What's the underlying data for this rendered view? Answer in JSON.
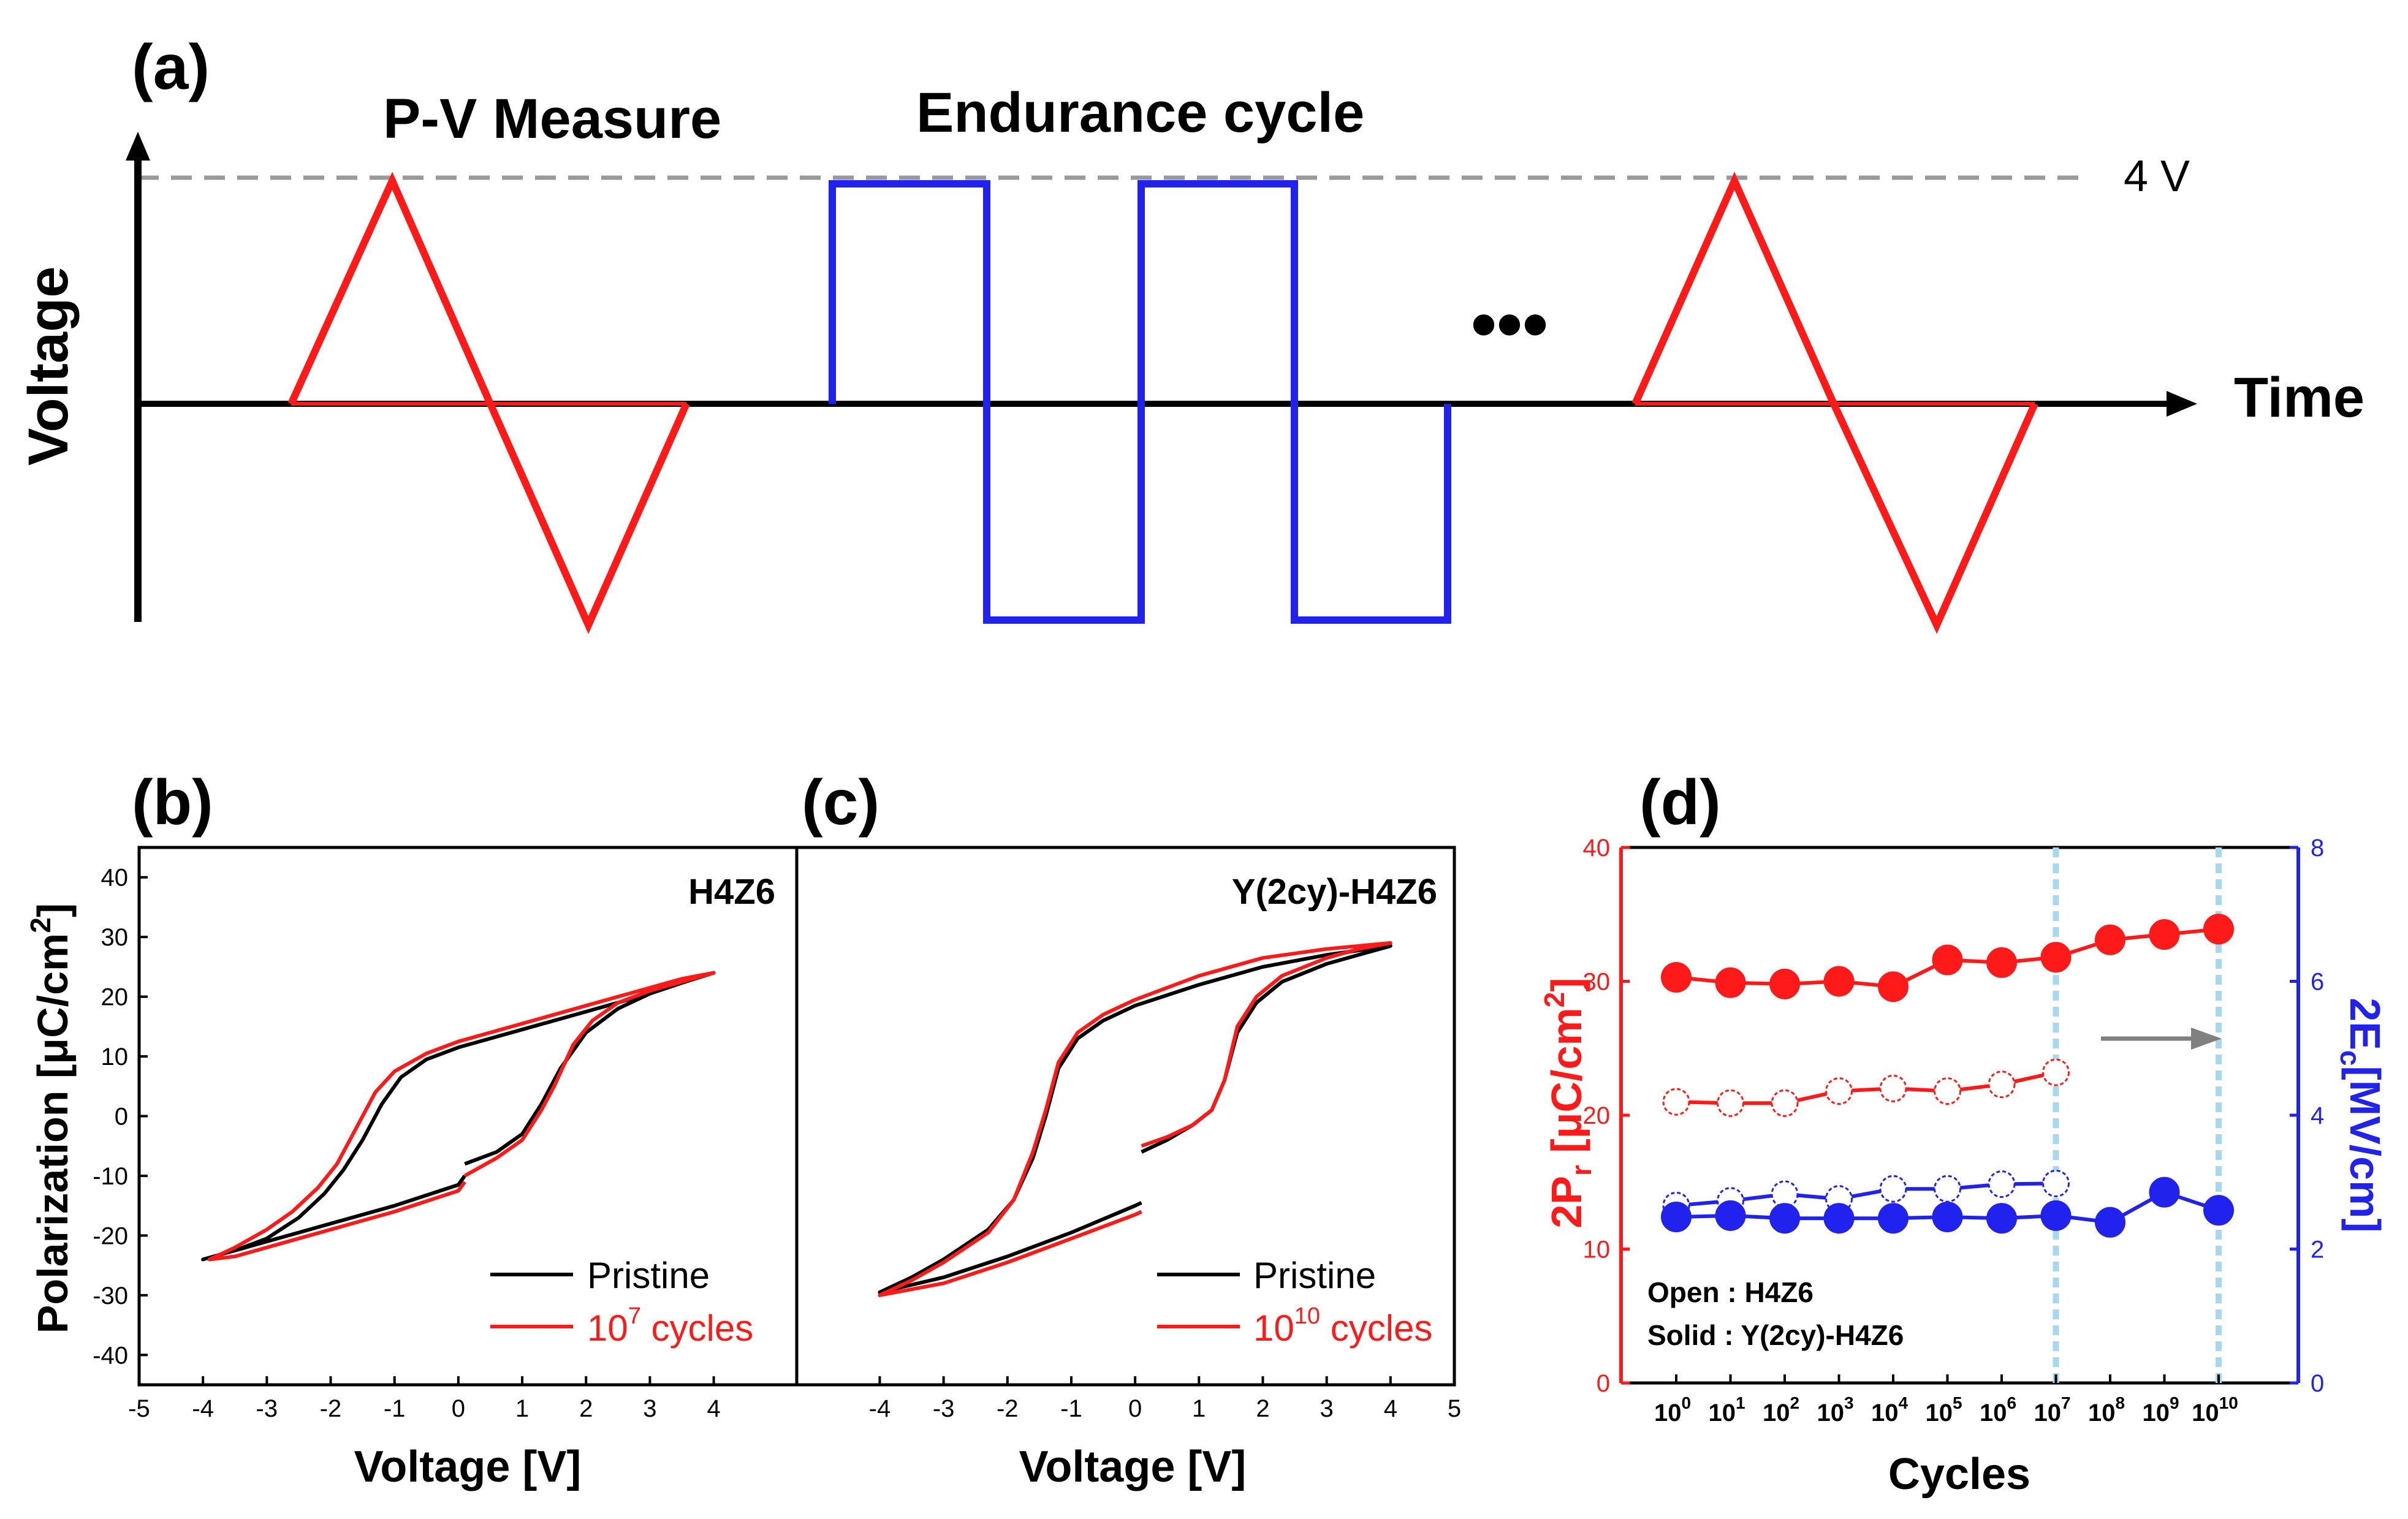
{
  "colors": {
    "red": "#ff1a1a",
    "blue": "#2222ee",
    "black": "#000000",
    "gray": "#999999",
    "lightblue": "#a8d8f0",
    "arrowgray": "#808080"
  },
  "panel_a": {
    "label": "(a)",
    "pv_title": "P-V Measure",
    "endurance_title": "Endurance cycle",
    "voltage_label": "Voltage",
    "time_label": "Time",
    "level_label": "4 V",
    "ellipsis": "•••"
  },
  "chart_data": [
    {
      "id": "b",
      "type": "line",
      "panel_label": "(b)",
      "sample": "H4Z6",
      "xlabel": "Voltage [V]",
      "ylabel_main": "Polarization [μC/cm",
      "ylabel_sup": "2",
      "ylabel_end": "]",
      "xlim": [
        -5,
        5.3
      ],
      "ylim": [
        -45,
        45
      ],
      "xticks": [
        "-5",
        "-4",
        "-3",
        "-2",
        "-1",
        "0",
        "1",
        "2",
        "3",
        "4"
      ],
      "xtick_values": [
        -5,
        -4,
        -3,
        -2,
        -1,
        0,
        1,
        2,
        3,
        4
      ],
      "yticks": [
        "-40",
        "-30",
        "-20",
        "-10",
        "0",
        "10",
        "20",
        "30",
        "40"
      ],
      "ytick_values": [
        -40,
        -30,
        -20,
        -10,
        0,
        10,
        20,
        30,
        40
      ],
      "legend": [
        {
          "name": "Pristine",
          "sup": "",
          "suffix": "",
          "color": "#000000"
        },
        {
          "name": "10",
          "sup": "7",
          "suffix": " cycles",
          "color": "#ff1a1a"
        }
      ],
      "series": [
        {
          "name": "Pristine",
          "color": "#000000",
          "x": [
            0.1,
            0.6,
            1.0,
            1.3,
            1.6,
            2.0,
            2.5,
            3.0,
            3.5,
            4.0,
            3.5,
            3.0,
            2.0,
            1.0,
            0.0,
            -0.5,
            -0.9,
            -1.2,
            -1.5,
            -1.8,
            -2.1,
            -2.5,
            -3.0,
            -3.5,
            -4.0,
            -3.5,
            -3.0,
            -2.0,
            -1.0,
            0.0,
            0.1
          ],
          "y": [
            -8,
            -6,
            -3,
            2,
            8,
            14,
            18,
            20.5,
            22.5,
            24,
            22.3,
            20.5,
            17.5,
            14.5,
            11.5,
            9.5,
            6.5,
            2,
            -4,
            -9,
            -13,
            -17,
            -20.5,
            -22.5,
            -24,
            -22.5,
            -21,
            -18,
            -15,
            -11.5,
            -10
          ]
        },
        {
          "name": "10^7 cycles",
          "color": "#ff1a1a",
          "x": [
            0.1,
            0.6,
            1.0,
            1.3,
            1.5,
            1.8,
            2.1,
            2.5,
            3.0,
            3.5,
            4.0,
            3.5,
            3.0,
            2.0,
            1.0,
            0.0,
            -0.5,
            -1.0,
            -1.3,
            -1.6,
            -1.9,
            -2.2,
            -2.6,
            -3.0,
            -3.5,
            -3.9,
            -3.5,
            -3.0,
            -2.0,
            -1.0,
            0.0,
            0.1
          ],
          "y": [
            -10,
            -7,
            -4,
            1,
            5,
            12,
            16,
            19,
            21,
            22.5,
            24,
            23,
            21.5,
            18.5,
            15.5,
            12.5,
            10.5,
            7.5,
            4,
            -2,
            -8,
            -12,
            -16,
            -19,
            -22,
            -24,
            -23.5,
            -22,
            -19,
            -16,
            -12.5,
            -11
          ]
        }
      ]
    },
    {
      "id": "c",
      "type": "line",
      "panel_label": "(c)",
      "sample": "Y(2cy)-H4Z6",
      "xlabel": "Voltage [V]",
      "xlim": [
        -5.3,
        5
      ],
      "ylim": [
        -45,
        45
      ],
      "xticks": [
        "-4",
        "-3",
        "-2",
        "-1",
        "0",
        "1",
        "2",
        "3",
        "4",
        "5"
      ],
      "xtick_values": [
        -4,
        -3,
        -2,
        -1,
        0,
        1,
        2,
        3,
        4,
        5
      ],
      "legend": [
        {
          "name": "Pristine",
          "sup": "",
          "suffix": "",
          "color": "#000000"
        },
        {
          "name": "10",
          "sup": "10",
          "suffix": " cycles",
          "color": "#ff1a1a"
        }
      ],
      "series": [
        {
          "name": "Pristine",
          "color": "#000000",
          "x": [
            0.1,
            0.5,
            0.9,
            1.2,
            1.4,
            1.6,
            1.9,
            2.3,
            3.0,
            3.5,
            4.0,
            3.0,
            2.0,
            1.0,
            0.0,
            -0.5,
            -0.9,
            -1.2,
            -1.4,
            -1.6,
            -1.9,
            -2.3,
            -3.0,
            -3.5,
            -4.0,
            -3.0,
            -2.0,
            -1.0,
            0.0,
            0.1
          ],
          "y": [
            -6,
            -4,
            -1.5,
            1,
            6,
            14,
            19,
            22.5,
            25.5,
            27,
            28.5,
            27,
            25,
            22,
            18.5,
            16,
            13,
            8,
            0,
            -7,
            -14,
            -19,
            -24,
            -27,
            -29.5,
            -27,
            -23.5,
            -19.5,
            -15,
            -14.5
          ]
        },
        {
          "name": "10^10 cycles",
          "color": "#ff1a1a",
          "x": [
            0.1,
            0.5,
            0.9,
            1.2,
            1.4,
            1.6,
            1.9,
            2.3,
            3.0,
            3.5,
            4.0,
            3.0,
            2.0,
            1.0,
            0.0,
            -0.5,
            -0.9,
            -1.2,
            -1.4,
            -1.6,
            -1.9,
            -2.3,
            -3.0,
            -3.5,
            -4.0,
            -3.0,
            -2.0,
            -1.0,
            0.0,
            0.1
          ],
          "y": [
            -5,
            -3.5,
            -1.5,
            1,
            6,
            15,
            20,
            23.5,
            26.5,
            28,
            29,
            28,
            26.5,
            23.5,
            19.5,
            17,
            14,
            9,
            1,
            -6,
            -14,
            -19.5,
            -24.5,
            -27.5,
            -30,
            -28,
            -24.5,
            -20.5,
            -16.5,
            -16
          ]
        }
      ]
    },
    {
      "id": "d",
      "type": "line",
      "panel_label": "(d)",
      "xlabel": "Cycles",
      "ylabel_left_main": "2P",
      "ylabel_left_sub": "r",
      "ylabel_left_mid": " [μC/cm",
      "ylabel_left_sup": "2",
      "ylabel_left_end": "]",
      "ylabel_right_main": "2E",
      "ylabel_right_sub": "c",
      "ylabel_right_end": "[MV/cm]",
      "left_ylim": [
        0,
        40
      ],
      "right_ylim": [
        0,
        8
      ],
      "left_yticks": [
        "0",
        "10",
        "20",
        "30",
        "40"
      ],
      "left_ytick_values": [
        0,
        10,
        20,
        30,
        40
      ],
      "right_yticks": [
        "0",
        "2",
        "4",
        "6",
        "8"
      ],
      "right_ytick_values": [
        0,
        2,
        4,
        6,
        8
      ],
      "xtick_base": "10",
      "xtick_exponents": [
        "0",
        "1",
        "2",
        "3",
        "4",
        "5",
        "6",
        "7",
        "8",
        "9",
        "10"
      ],
      "annotations": {
        "open_label": "Open : H4Z6",
        "solid_label": "Solid : Y(2cy)-H4Z6"
      },
      "vlines_at_exponent": [
        7,
        10
      ],
      "series": [
        {
          "name": "2Pr Y(2cy)-H4Z6 (solid)",
          "axis": "left",
          "color": "#ff1a1a",
          "filled": true,
          "x": [
            0,
            1,
            2,
            3,
            4,
            5,
            6,
            7,
            8,
            9,
            10
          ],
          "y": [
            30.3,
            29.9,
            29.8,
            30.0,
            29.6,
            31.6,
            31.4,
            31.8,
            33.1,
            33.5,
            33.9
          ]
        },
        {
          "name": "2Pr H4Z6 (open)",
          "axis": "left",
          "color": "#ff1a1a",
          "filled": false,
          "x": [
            0,
            1,
            2,
            3,
            4,
            5,
            6,
            7
          ],
          "y": [
            21.0,
            20.9,
            20.9,
            21.8,
            22.0,
            21.8,
            22.3,
            23.2
          ]
        },
        {
          "name": "2Ec H4Z6 (open)",
          "axis": "right",
          "color": "#2222ee",
          "filled": false,
          "x": [
            0,
            1,
            2,
            3,
            4,
            5,
            6,
            7
          ],
          "y": [
            2.65,
            2.72,
            2.82,
            2.75,
            2.9,
            2.9,
            2.97,
            2.98
          ]
        },
        {
          "name": "2Ec Y(2cy)-H4Z6 (solid)",
          "axis": "right",
          "color": "#2222ee",
          "filled": true,
          "x": [
            0,
            1,
            2,
            3,
            4,
            5,
            6,
            7,
            8,
            9,
            10
          ],
          "y": [
            2.48,
            2.5,
            2.46,
            2.46,
            2.46,
            2.48,
            2.46,
            2.5,
            2.4,
            2.85,
            2.58
          ]
        }
      ]
    }
  ]
}
